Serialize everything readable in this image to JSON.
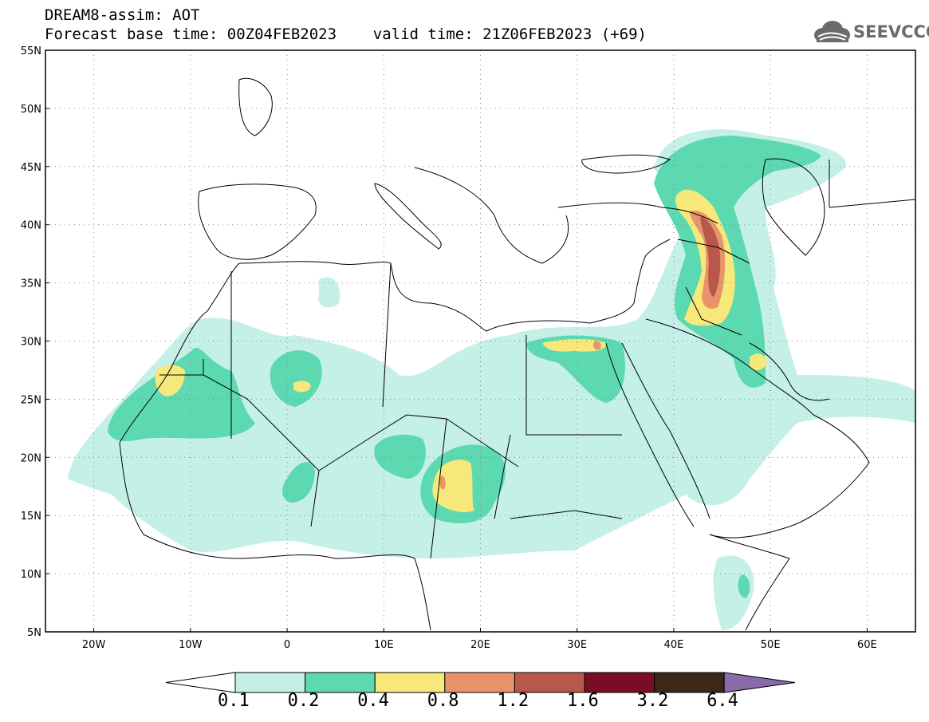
{
  "header": {
    "title_line1": "DREAM8-assim: AOT",
    "title_line2": "Forecast base time: 00Z04FEB2023    valid time: 21Z06FEB2023 (+69)",
    "logo_text": "SEEVCCC",
    "logo_icon": "cloud-icon"
  },
  "map": {
    "variable": "AOT",
    "projection": "lat-lon",
    "lon_range": [
      -25,
      65
    ],
    "lat_range": [
      5,
      55
    ],
    "lat_ticks": [
      "55N",
      "50N",
      "45N",
      "40N",
      "35N",
      "30N",
      "25N",
      "20N",
      "15N",
      "10N",
      "5N"
    ],
    "lon_ticks": [
      "20W",
      "10W",
      "0",
      "10E",
      "20E",
      "30E",
      "40E",
      "50E",
      "60E"
    ],
    "gridlines": "dotted",
    "background_color": "#ffffff",
    "border_color": "#000000"
  },
  "colorbar": {
    "labels": [
      "0.1",
      "0.2",
      "0.4",
      "0.8",
      "1.2",
      "1.6",
      "3.2",
      "6.4"
    ],
    "colors": [
      "#ffffff",
      "#c4f0e8",
      "#5cd9b0",
      "#f6e87a",
      "#e8936a",
      "#b8584a",
      "#7a0c25",
      "#3b2818",
      "#8a6aa8"
    ],
    "extend": "both"
  }
}
